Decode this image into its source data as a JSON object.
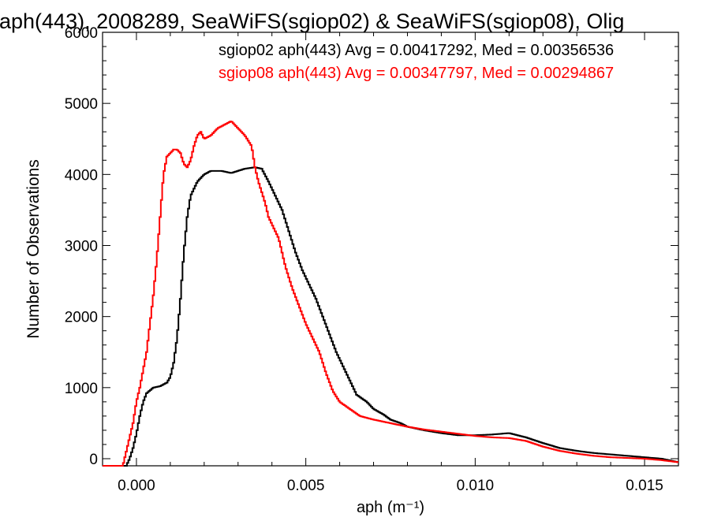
{
  "chart_data": {
    "type": "line",
    "title": "aph(443), 2008289, SeaWiFS(sgiop02) & SeaWiFS(sgiop08), Olig",
    "xlabel": "aph (m⁻¹)",
    "ylabel": "Number of Observations",
    "xlim": [
      -0.001,
      0.016
    ],
    "ylim": [
      -100,
      6000
    ],
    "xticks": [
      0.0,
      0.005,
      0.01,
      0.015
    ],
    "xtick_labels": [
      "0.000",
      "0.005",
      "0.010",
      "0.015"
    ],
    "yticks": [
      0,
      1000,
      2000,
      3000,
      4000,
      5000,
      6000
    ],
    "ytick_labels": [
      "0",
      "1000",
      "2000",
      "3000",
      "4000",
      "5000",
      "6000"
    ],
    "grid": false,
    "legend_position": "top-right",
    "series": [
      {
        "name": "sgiop02 aph(443) Avg = 0.00417292, Med = 0.00356536",
        "color": "#000000",
        "x": [
          -0.001,
          -0.0003,
          -0.0002,
          -0.0001,
          0.0,
          0.0001,
          0.0002,
          0.0003,
          0.0005,
          0.0007,
          0.0009,
          0.001,
          0.0011,
          0.0012,
          0.0013,
          0.0014,
          0.0015,
          0.0016,
          0.0018,
          0.002,
          0.0022,
          0.0025,
          0.0028,
          0.003,
          0.0032,
          0.0035,
          0.0037,
          0.0039,
          0.0041,
          0.0043,
          0.0045,
          0.0047,
          0.0049,
          0.0051,
          0.0053,
          0.0055,
          0.0057,
          0.0059,
          0.0061,
          0.0063,
          0.0065,
          0.0068,
          0.007,
          0.0073,
          0.0075,
          0.0078,
          0.008,
          0.0085,
          0.009,
          0.0095,
          0.01,
          0.0105,
          0.011,
          0.0115,
          0.012,
          0.0125,
          0.013,
          0.0135,
          0.014,
          0.0145,
          0.015,
          0.0155,
          0.016
        ],
        "y": [
          -100,
          -100,
          0,
          150,
          350,
          600,
          800,
          920,
          1000,
          1020,
          1070,
          1150,
          1350,
          1700,
          2250,
          2900,
          3400,
          3700,
          3900,
          4000,
          4050,
          4050,
          4020,
          4050,
          4080,
          4100,
          4080,
          3900,
          3700,
          3500,
          3200,
          2900,
          2650,
          2450,
          2250,
          2000,
          1750,
          1500,
          1300,
          1100,
          900,
          800,
          700,
          620,
          550,
          500,
          450,
          400,
          360,
          330,
          330,
          340,
          360,
          300,
          220,
          150,
          110,
          80,
          60,
          40,
          20,
          0,
          -50
        ]
      },
      {
        "name": "sgiop08 aph(443) Avg = 0.00347797, Med = 0.00294867",
        "color": "#ff0000",
        "x": [
          -0.001,
          -0.0004,
          -0.0003,
          -0.0002,
          -0.0001,
          0.0,
          0.0001,
          0.0002,
          0.0003,
          0.0004,
          0.0005,
          0.0006,
          0.0007,
          0.0008,
          0.0009,
          0.001,
          0.0011,
          0.0012,
          0.0013,
          0.0014,
          0.0015,
          0.0016,
          0.0017,
          0.0018,
          0.0019,
          0.002,
          0.0022,
          0.0024,
          0.0026,
          0.0028,
          0.003,
          0.0032,
          0.0034,
          0.0035,
          0.0036,
          0.0037,
          0.0038,
          0.0039,
          0.004,
          0.0041,
          0.0042,
          0.0043,
          0.0044,
          0.0045,
          0.0046,
          0.0048,
          0.005,
          0.0052,
          0.0054,
          0.0056,
          0.0058,
          0.006,
          0.0063,
          0.0066,
          0.007,
          0.0075,
          0.008,
          0.0085,
          0.009,
          0.0095,
          0.01,
          0.0105,
          0.011,
          0.0115,
          0.012,
          0.0125,
          0.013,
          0.0135,
          0.014,
          0.0145,
          0.015,
          0.0155,
          0.016
        ],
        "y": [
          -100,
          -100,
          100,
          300,
          500,
          800,
          1000,
          1250,
          1500,
          1900,
          2300,
          2800,
          3400,
          4000,
          4250,
          4300,
          4350,
          4350,
          4300,
          4150,
          4100,
          4200,
          4400,
          4550,
          4600,
          4500,
          4550,
          4650,
          4700,
          4750,
          4650,
          4550,
          4400,
          4100,
          3900,
          3750,
          3600,
          3400,
          3300,
          3200,
          3100,
          2900,
          2700,
          2550,
          2400,
          2150,
          1900,
          1700,
          1500,
          1200,
          950,
          800,
          700,
          600,
          550,
          500,
          450,
          410,
          380,
          350,
          320,
          300,
          290,
          250,
          170,
          110,
          70,
          40,
          20,
          10,
          0,
          -20,
          -50
        ]
      }
    ]
  }
}
